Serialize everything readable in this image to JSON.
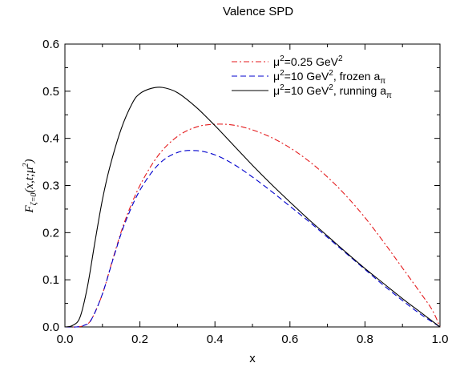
{
  "chart_data": {
    "type": "line",
    "title": "Valence SPD",
    "xlabel": "x",
    "ylabel": {
      "main": "F",
      "sub": "ζ=0",
      "args": "(x,t;μ",
      "sup": "2",
      "close": ")"
    },
    "xlim": [
      0.0,
      1.0
    ],
    "ylim": [
      0.0,
      0.6
    ],
    "xticks": [
      "0.0",
      "0.2",
      "0.4",
      "0.6",
      "0.8",
      "1.0"
    ],
    "yticks": [
      "0.0",
      "0.1",
      "0.2",
      "0.3",
      "0.4",
      "0.5",
      "0.6"
    ],
    "grid": false,
    "legend_position": "top-right",
    "series": [
      {
        "name": "μ²=0.25 GeV²",
        "legend": {
          "pre": "μ",
          "sup1": "2",
          "mid": "=0.25 GeV",
          "sup2": "2",
          "post": "",
          "sub": ""
        },
        "color": "#e41a1c",
        "dash": "dashdot",
        "x": [
          0.0,
          0.03,
          0.05,
          0.07,
          0.1,
          0.13,
          0.16,
          0.2,
          0.25,
          0.3,
          0.35,
          0.4,
          0.45,
          0.5,
          0.55,
          0.6,
          0.65,
          0.7,
          0.75,
          0.8,
          0.85,
          0.9,
          0.95,
          0.98,
          1.0
        ],
        "y": [
          0.0,
          0.0,
          0.003,
          0.015,
          0.07,
          0.15,
          0.225,
          0.3,
          0.365,
          0.404,
          0.424,
          0.43,
          0.428,
          0.418,
          0.402,
          0.38,
          0.352,
          0.318,
          0.278,
          0.232,
          0.18,
          0.125,
          0.07,
          0.035,
          0.0
        ]
      },
      {
        "name": "μ²=10 GeV², frozen aπ",
        "legend": {
          "pre": "μ",
          "sup1": "2",
          "mid": "=10 GeV",
          "sup2": "2",
          "post": ", frozen a",
          "sub": "π"
        },
        "color": "#0000cd",
        "dash": "dashed",
        "x": [
          0.0,
          0.03,
          0.05,
          0.07,
          0.1,
          0.13,
          0.16,
          0.2,
          0.25,
          0.3,
          0.35,
          0.4,
          0.45,
          0.5,
          0.55,
          0.6,
          0.65,
          0.7,
          0.75,
          0.8,
          0.85,
          0.9,
          0.95,
          1.0
        ],
        "y": [
          0.0,
          0.0,
          0.003,
          0.015,
          0.07,
          0.148,
          0.22,
          0.29,
          0.345,
          0.37,
          0.374,
          0.365,
          0.345,
          0.318,
          0.288,
          0.256,
          0.224,
          0.19,
          0.156,
          0.122,
          0.088,
          0.056,
          0.026,
          0.0
        ]
      },
      {
        "name": "μ²=10 GeV², running aπ",
        "legend": {
          "pre": "μ",
          "sup1": "2",
          "mid": "=10 GeV",
          "sup2": "2",
          "post": ", running a",
          "sub": "π"
        },
        "color": "#000000",
        "dash": "solid",
        "x": [
          0.0,
          0.02,
          0.04,
          0.06,
          0.08,
          0.1,
          0.12,
          0.15,
          0.18,
          0.2,
          0.23,
          0.26,
          0.3,
          0.35,
          0.4,
          0.45,
          0.5,
          0.55,
          0.6,
          0.65,
          0.7,
          0.75,
          0.8,
          0.85,
          0.9,
          0.95,
          1.0
        ],
        "y": [
          0.0,
          0.003,
          0.02,
          0.085,
          0.18,
          0.27,
          0.34,
          0.42,
          0.475,
          0.495,
          0.506,
          0.508,
          0.497,
          0.466,
          0.427,
          0.385,
          0.343,
          0.303,
          0.265,
          0.228,
          0.193,
          0.158,
          0.124,
          0.092,
          0.06,
          0.03,
          0.0
        ]
      }
    ]
  }
}
